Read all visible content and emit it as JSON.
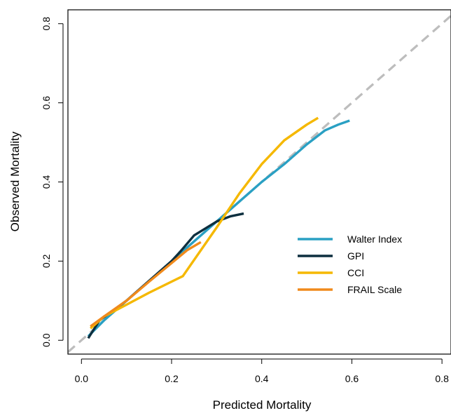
{
  "chart_data": {
    "type": "line",
    "xlabel": "Predicted Mortality",
    "ylabel": "Observed Mortality",
    "xlim": [
      -0.03,
      0.82
    ],
    "ylim": [
      -0.035,
      0.835
    ],
    "x_ticks": [
      0.0,
      0.2,
      0.4,
      0.6,
      0.8
    ],
    "x_tick_labels": [
      "0.0",
      "0.2",
      "0.4",
      "0.6",
      "0.8"
    ],
    "y_ticks": [
      0.0,
      0.2,
      0.4,
      0.6,
      0.8
    ],
    "y_tick_labels": [
      "0.0",
      "0.2",
      "0.4",
      "0.6",
      "0.8"
    ],
    "grid": false,
    "legend_position": "right",
    "reference_line": {
      "style": "dashed",
      "color": "#bdbdbd",
      "points": [
        [
          -0.03,
          -0.03
        ],
        [
          0.82,
          0.82
        ]
      ]
    },
    "series": [
      {
        "name": "Walter Index",
        "color": "#2aa0c3",
        "points": [
          [
            0.015,
            0.01
          ],
          [
            0.05,
            0.05
          ],
          [
            0.1,
            0.1
          ],
          [
            0.15,
            0.15
          ],
          [
            0.2,
            0.2
          ],
          [
            0.25,
            0.25
          ],
          [
            0.3,
            0.3
          ],
          [
            0.35,
            0.35
          ],
          [
            0.4,
            0.4
          ],
          [
            0.45,
            0.445
          ],
          [
            0.5,
            0.495
          ],
          [
            0.54,
            0.53
          ],
          [
            0.57,
            0.545
          ],
          [
            0.595,
            0.555
          ]
        ]
      },
      {
        "name": "GPI",
        "color": "#0d2f3f",
        "points": [
          [
            0.015,
            0.005
          ],
          [
            0.04,
            0.05
          ],
          [
            0.1,
            0.1
          ],
          [
            0.15,
            0.15
          ],
          [
            0.2,
            0.2
          ],
          [
            0.22,
            0.225
          ],
          [
            0.25,
            0.265
          ],
          [
            0.3,
            0.3
          ],
          [
            0.33,
            0.313
          ],
          [
            0.36,
            0.32
          ]
        ]
      },
      {
        "name": "CCI",
        "color": "#f5b800",
        "points": [
          [
            0.02,
            0.03
          ],
          [
            0.05,
            0.06
          ],
          [
            0.1,
            0.09
          ],
          [
            0.15,
            0.12
          ],
          [
            0.225,
            0.162
          ],
          [
            0.3,
            0.285
          ],
          [
            0.35,
            0.37
          ],
          [
            0.4,
            0.445
          ],
          [
            0.45,
            0.505
          ],
          [
            0.5,
            0.545
          ],
          [
            0.525,
            0.562
          ]
        ]
      },
      {
        "name": "FRAIL Scale",
        "color": "#f08a1c",
        "points": [
          [
            0.02,
            0.035
          ],
          [
            0.05,
            0.06
          ],
          [
            0.1,
            0.1
          ],
          [
            0.15,
            0.148
          ],
          [
            0.2,
            0.195
          ],
          [
            0.235,
            0.228
          ],
          [
            0.265,
            0.248
          ]
        ]
      }
    ]
  }
}
